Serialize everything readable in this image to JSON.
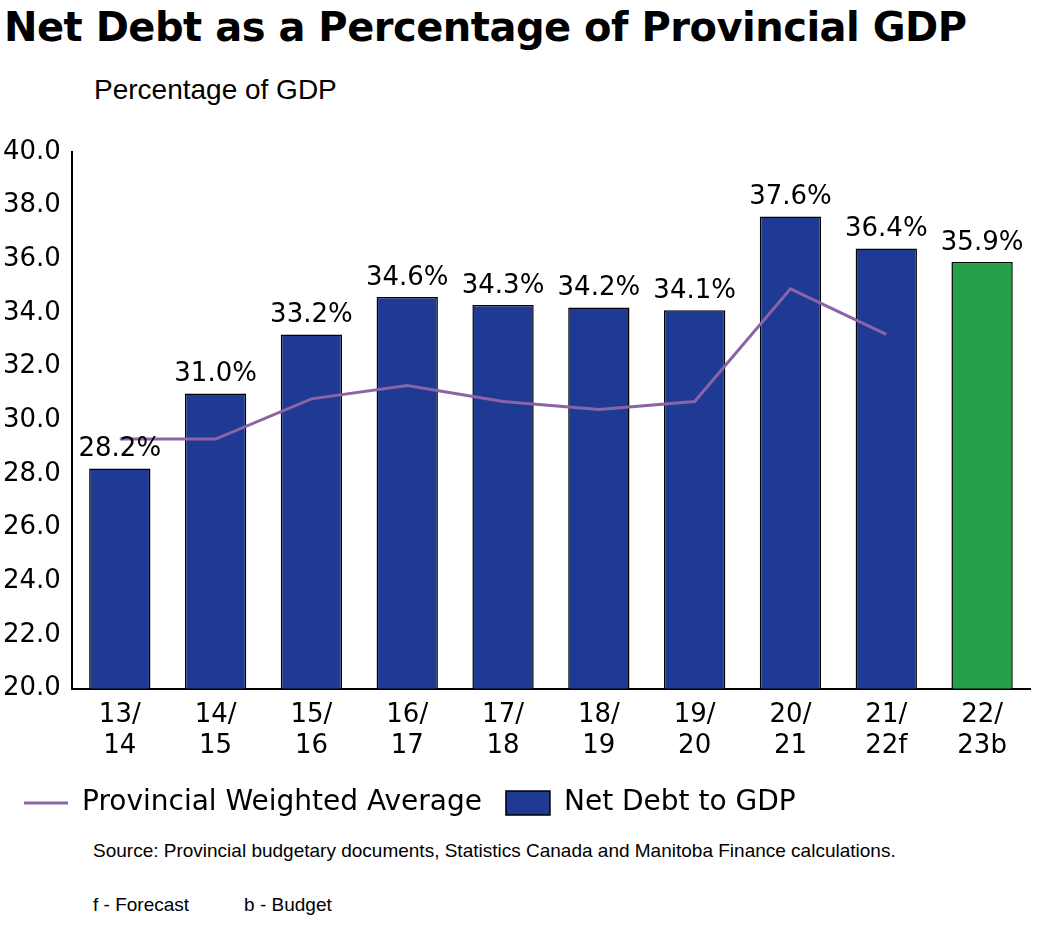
{
  "chart_data": {
    "type": "bar",
    "title": "Net Debt as a Percentage of Provincial GDP",
    "y_label": "Percentage of GDP",
    "categories": [
      "13/\n14",
      "14/\n15",
      "15/\n16",
      "16/\n17",
      "17/\n18",
      "18/\n19",
      "19/\n20",
      "20/\n21",
      "21/\n22f",
      "22/\n23b"
    ],
    "series": [
      {
        "name": "Net Debt to GDP",
        "type": "bar",
        "color": "#1f3a93",
        "colors": [
          "#1f3a93",
          "#1f3a93",
          "#1f3a93",
          "#1f3a93",
          "#1f3a93",
          "#1f3a93",
          "#1f3a93",
          "#1f3a93",
          "#1f3a93",
          "#27a149"
        ],
        "values": [
          28.2,
          31.0,
          33.2,
          34.6,
          34.3,
          34.2,
          34.1,
          37.6,
          36.4,
          35.9
        ],
        "value_labels": [
          "28.2%",
          "31.0%",
          "33.2%",
          "34.6%",
          "34.3%",
          "34.2%",
          "34.1%",
          "37.6%",
          "36.4%",
          "35.9%"
        ],
        "data_labels": true
      },
      {
        "name": "Provincial Weighted Average",
        "type": "line",
        "color": "#8a63a8",
        "line_style": "solid",
        "marker": "none",
        "values": [
          29.3,
          29.3,
          30.8,
          31.3,
          30.7,
          30.4,
          30.7,
          34.9,
          33.2,
          null
        ]
      }
    ],
    "ylim": [
      20,
      40
    ],
    "yticks": [
      {
        "value": 20,
        "label": "20.0"
      },
      {
        "value": 22,
        "label": "22.0"
      },
      {
        "value": 24,
        "label": "24.0"
      },
      {
        "value": 26,
        "label": "26.0"
      },
      {
        "value": 28,
        "label": "28.0"
      },
      {
        "value": 30,
        "label": "30.0"
      },
      {
        "value": 32,
        "label": "32.0"
      },
      {
        "value": 34,
        "label": "34.0"
      },
      {
        "value": 36,
        "label": "36.0"
      },
      {
        "value": 38,
        "label": "38.0"
      },
      {
        "value": 40,
        "label": "40.0"
      }
    ],
    "grid": false,
    "legend": "bottom-left",
    "source": "Source: Provincial budgetary documents, Statistics Canada and Manitoba Finance calculations.",
    "footnotes": [
      "f - Forecast",
      "b - Budget"
    ]
  }
}
